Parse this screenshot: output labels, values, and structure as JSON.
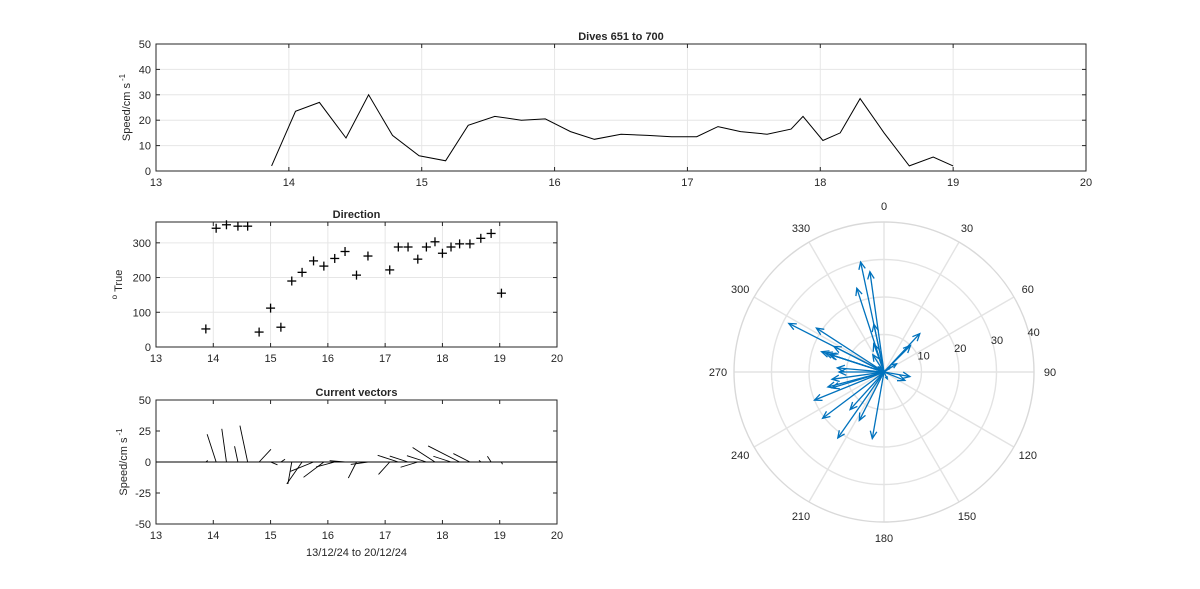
{
  "chart_data": [
    {
      "id": "speed",
      "type": "line",
      "title": "Dives 651 to 700",
      "ylabel": "Speed/cm s",
      "ylabel_exp": "-1",
      "xlim": [
        13,
        20
      ],
      "ylim": [
        0,
        50
      ],
      "xticks": [
        "13",
        "14",
        "15",
        "16",
        "17",
        "18",
        "19",
        "20"
      ],
      "yticks": [
        "0",
        "10",
        "20",
        "30",
        "40",
        "50"
      ],
      "grid": true,
      "x": [
        13.87,
        14.05,
        14.23,
        14.43,
        14.6,
        14.78,
        14.98,
        15.18,
        15.35,
        15.55,
        15.75,
        15.93,
        16.12,
        16.3,
        16.5,
        16.7,
        16.88,
        17.07,
        17.23,
        17.4,
        17.6,
        17.78,
        17.87,
        18.02,
        18.15,
        18.3,
        18.48,
        18.67,
        18.85,
        19.0
      ],
      "y": [
        2,
        23.5,
        27,
        13,
        30,
        14,
        6,
        4,
        18,
        21.5,
        20,
        20.5,
        15.5,
        12.5,
        14.5,
        14,
        13.5,
        13.5,
        17.5,
        15.5,
        14.5,
        16.5,
        21.5,
        12,
        15,
        28.5,
        15,
        2,
        5.5,
        2
      ]
    },
    {
      "id": "direction",
      "type": "scatter",
      "title": "Direction",
      "ylabel": "True",
      "ylabel_prefix": "o",
      "xlim": [
        13,
        20
      ],
      "ylim": [
        0,
        360
      ],
      "xticks": [
        "13",
        "14",
        "15",
        "16",
        "17",
        "18",
        "19",
        "20"
      ],
      "yticks": [
        "0",
        "100",
        "200",
        "300"
      ],
      "grid": true,
      "x": [
        13.87,
        14.05,
        14.23,
        14.43,
        14.6,
        14.8,
        15.0,
        15.18,
        15.37,
        15.55,
        15.75,
        15.93,
        16.12,
        16.3,
        16.5,
        16.7,
        17.08,
        17.23,
        17.4,
        17.57,
        17.72,
        17.87,
        18.0,
        18.15,
        18.3,
        18.48,
        18.67,
        18.85,
        19.03
      ],
      "y": [
        52,
        342,
        352,
        348,
        348,
        43,
        112,
        57,
        190,
        215,
        248,
        233,
        255,
        275,
        207,
        262,
        222,
        288,
        288,
        253,
        288,
        303,
        270,
        288,
        297,
        297,
        313,
        327,
        155
      ]
    },
    {
      "id": "vectors",
      "type": "line",
      "title": "Current vectors",
      "ylabel": "Speed/cm s",
      "ylabel_exp": "-1",
      "xlabel": "13/12/24 to 20/12/24",
      "xlim": [
        13,
        20
      ],
      "ylim": [
        -50,
        50
      ],
      "xticks": [
        "13",
        "14",
        "15",
        "16",
        "17",
        "18",
        "19",
        "20"
      ],
      "yticks": [
        "-50",
        "-25",
        "0",
        "25",
        "50"
      ],
      "grid": false,
      "vectors": [
        {
          "t": 13.87,
          "speed": 2,
          "dir": 52
        },
        {
          "t": 14.05,
          "speed": 23.5,
          "dir": 342
        },
        {
          "t": 14.23,
          "speed": 27,
          "dir": 352
        },
        {
          "t": 14.43,
          "speed": 13,
          "dir": 348
        },
        {
          "t": 14.6,
          "speed": 30,
          "dir": 348
        },
        {
          "t": 14.8,
          "speed": 14,
          "dir": 43
        },
        {
          "t": 15.0,
          "speed": 6,
          "dir": 112
        },
        {
          "t": 15.18,
          "speed": 4,
          "dir": 57
        },
        {
          "t": 15.37,
          "speed": 18,
          "dir": 190
        },
        {
          "t": 15.55,
          "speed": 21.5,
          "dir": 215
        },
        {
          "t": 15.75,
          "speed": 20,
          "dir": 248
        },
        {
          "t": 15.93,
          "speed": 20.5,
          "dir": 233
        },
        {
          "t": 16.12,
          "speed": 15.5,
          "dir": 255
        },
        {
          "t": 16.3,
          "speed": 12.5,
          "dir": 275
        },
        {
          "t": 16.5,
          "speed": 14.5,
          "dir": 207
        },
        {
          "t": 16.7,
          "speed": 14,
          "dir": 262
        },
        {
          "t": 17.08,
          "speed": 13.5,
          "dir": 222
        },
        {
          "t": 17.23,
          "speed": 17.5,
          "dir": 288
        },
        {
          "t": 17.4,
          "speed": 15.5,
          "dir": 288
        },
        {
          "t": 17.57,
          "speed": 14.5,
          "dir": 253
        },
        {
          "t": 17.72,
          "speed": 16.5,
          "dir": 288
        },
        {
          "t": 17.87,
          "speed": 21.5,
          "dir": 303
        },
        {
          "t": 18.0,
          "speed": 12,
          "dir": 270
        },
        {
          "t": 18.15,
          "speed": 15,
          "dir": 288
        },
        {
          "t": 18.3,
          "speed": 28.5,
          "dir": 297
        },
        {
          "t": 18.48,
          "speed": 15,
          "dir": 297
        },
        {
          "t": 18.67,
          "speed": 2,
          "dir": 313
        },
        {
          "t": 18.85,
          "speed": 5.5,
          "dir": 327
        },
        {
          "t": 19.03,
          "speed": 2,
          "dir": 155
        }
      ]
    },
    {
      "id": "rose",
      "type": "polar",
      "angle_labels": [
        "0",
        "30",
        "60",
        "90",
        "120",
        "150",
        "180",
        "210",
        "240",
        "270",
        "300",
        "330"
      ],
      "radial_ticks": [
        "10",
        "20",
        "30",
        "40"
      ],
      "rmax": 40,
      "color": "#0072bd",
      "vectors": [
        {
          "speed": 2,
          "dir": 52
        },
        {
          "speed": 23.5,
          "dir": 342
        },
        {
          "speed": 27,
          "dir": 352
        },
        {
          "speed": 13,
          "dir": 348
        },
        {
          "speed": 30,
          "dir": 348
        },
        {
          "speed": 14,
          "dir": 43
        },
        {
          "speed": 6,
          "dir": 112
        },
        {
          "speed": 4,
          "dir": 57
        },
        {
          "speed": 18,
          "dir": 190
        },
        {
          "speed": 21.5,
          "dir": 215
        },
        {
          "speed": 20,
          "dir": 248
        },
        {
          "speed": 20.5,
          "dir": 233
        },
        {
          "speed": 15.5,
          "dir": 255
        },
        {
          "speed": 12.5,
          "dir": 275
        },
        {
          "speed": 14.5,
          "dir": 207
        },
        {
          "speed": 14,
          "dir": 262
        },
        {
          "speed": 13.5,
          "dir": 222
        },
        {
          "speed": 17.5,
          "dir": 288
        },
        {
          "speed": 15.5,
          "dir": 288
        },
        {
          "speed": 14.5,
          "dir": 253
        },
        {
          "speed": 16.5,
          "dir": 288
        },
        {
          "speed": 21.5,
          "dir": 303
        },
        {
          "speed": 12,
          "dir": 270
        },
        {
          "speed": 15,
          "dir": 288
        },
        {
          "speed": 28.5,
          "dir": 297
        },
        {
          "speed": 15,
          "dir": 297
        },
        {
          "speed": 2,
          "dir": 313
        },
        {
          "speed": 5.5,
          "dir": 327
        },
        {
          "speed": 2,
          "dir": 155
        },
        {
          "speed": 10,
          "dir": 45
        },
        {
          "speed": 8,
          "dir": 340
        },
        {
          "speed": 7,
          "dir": 100
        }
      ]
    }
  ]
}
